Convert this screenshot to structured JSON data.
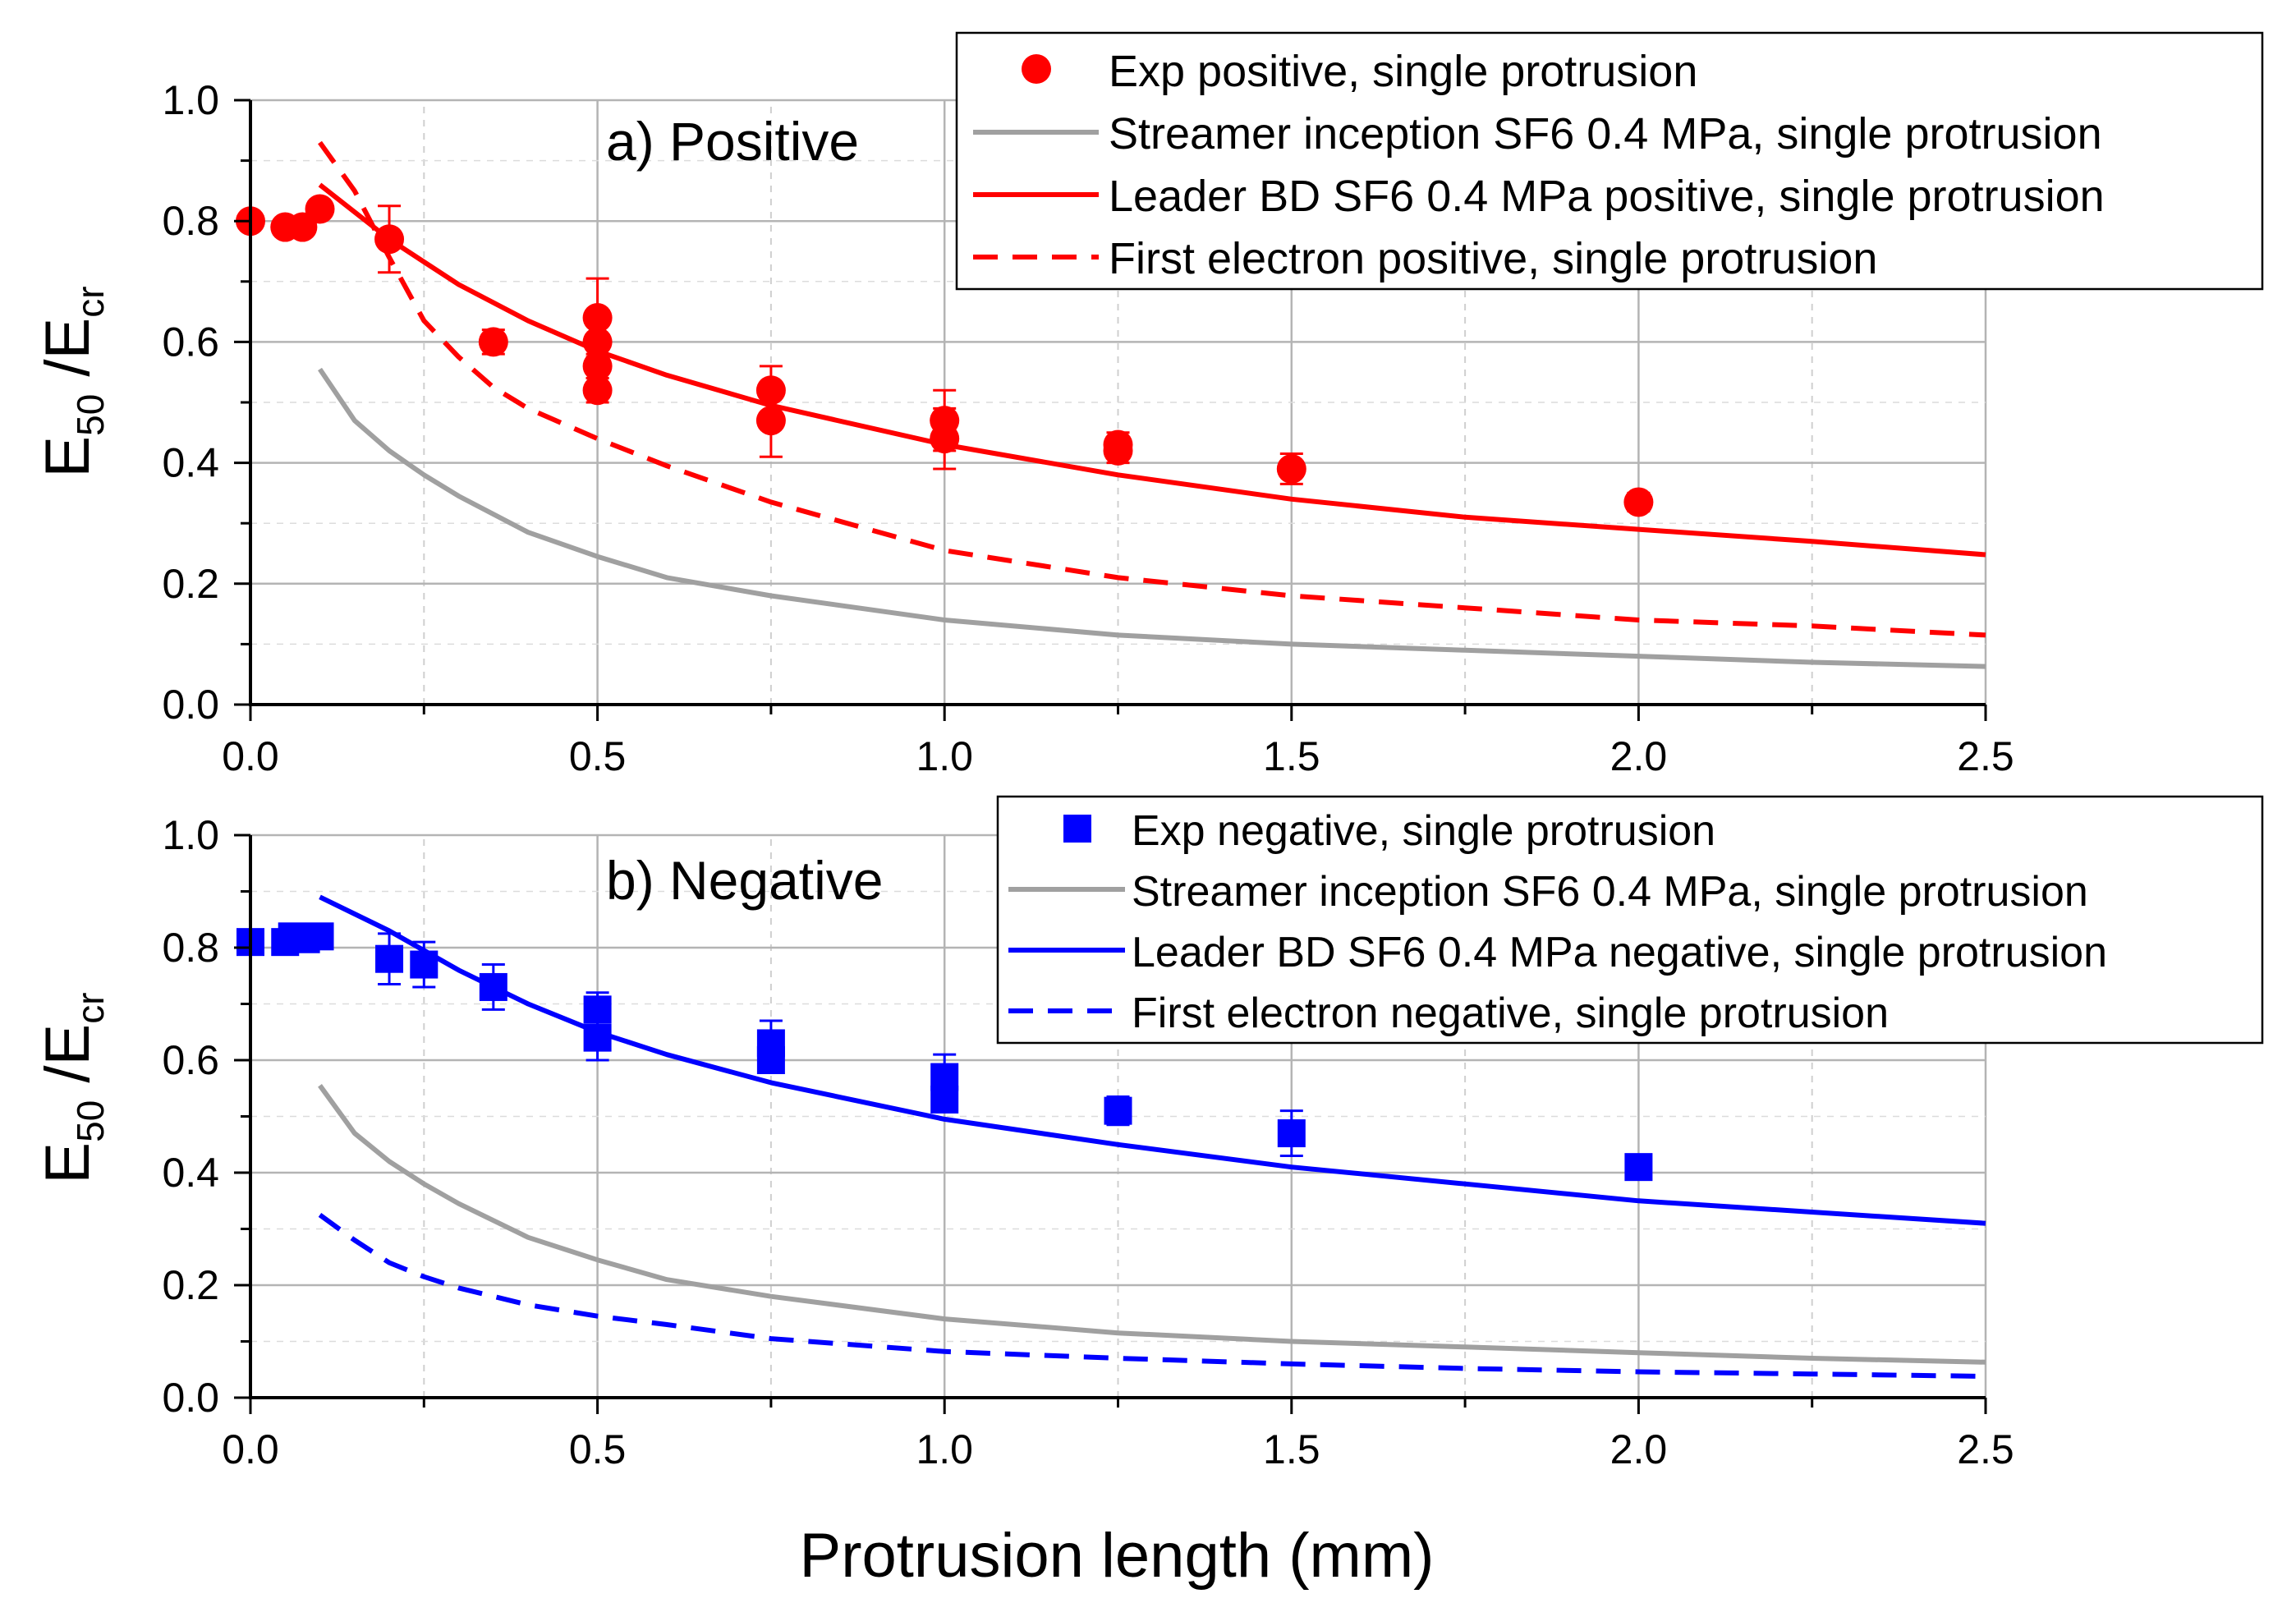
{
  "xlabel": "Protrusion length (mm)",
  "chart_data": [
    {
      "type": "scatter",
      "panel_label": "a) Positive",
      "ylabel_main": "E",
      "ylabel_sub1": "50",
      "ylabel_mid": " /E",
      "ylabel_sub2": "cr",
      "xlim": [
        0,
        2.5
      ],
      "ylim": [
        0,
        1.0
      ],
      "xticks": [
        "0.0",
        "0.5",
        "1.0",
        "1.5",
        "2.0",
        "2.5"
      ],
      "yticks": [
        "0.0",
        "0.2",
        "0.4",
        "0.6",
        "0.8",
        "1.0"
      ],
      "legend": [
        "Exp positive, single protrusion",
        "Streamer inception SF6 0.4 MPa, single protrusion",
        "Leader BD SF6 0.4 MPa positive, single protrusion",
        "First electron positive, single protrusion"
      ],
      "colors": {
        "exp": "#ff0000",
        "streamer": "#a0a0a0",
        "leader": "#ff0000",
        "first_electron": "#ff0000"
      },
      "exp_points": [
        {
          "x": 0.0,
          "y": 0.8,
          "err": 0
        },
        {
          "x": 0.05,
          "y": 0.79,
          "err": 0
        },
        {
          "x": 0.075,
          "y": 0.79,
          "err": 0
        },
        {
          "x": 0.1,
          "y": 0.82,
          "err": 0
        },
        {
          "x": 0.2,
          "y": 0.77,
          "err": 0.055
        },
        {
          "x": 0.35,
          "y": 0.6,
          "err": 0.02
        },
        {
          "x": 0.5,
          "y": 0.64,
          "err": 0.065
        },
        {
          "x": 0.5,
          "y": 0.6,
          "err": 0
        },
        {
          "x": 0.5,
          "y": 0.56,
          "err": 0.02
        },
        {
          "x": 0.5,
          "y": 0.52,
          "err": 0.02
        },
        {
          "x": 0.75,
          "y": 0.52,
          "err": 0.04
        },
        {
          "x": 0.75,
          "y": 0.47,
          "err": 0.06
        },
        {
          "x": 1.0,
          "y": 0.47,
          "err": 0.05
        },
        {
          "x": 1.0,
          "y": 0.44,
          "err": 0.05
        },
        {
          "x": 1.25,
          "y": 0.43,
          "err": 0.02
        },
        {
          "x": 1.25,
          "y": 0.42,
          "err": 0.02
        },
        {
          "x": 1.5,
          "y": 0.39,
          "err": 0.025
        },
        {
          "x": 2.0,
          "y": 0.335,
          "err": 0.015
        }
      ],
      "streamer": {
        "x": [
          0.1,
          0.15,
          0.2,
          0.25,
          0.3,
          0.4,
          0.5,
          0.6,
          0.75,
          1.0,
          1.25,
          1.5,
          1.75,
          2.0,
          2.25,
          2.5
        ],
        "y": [
          0.555,
          0.47,
          0.42,
          0.38,
          0.345,
          0.285,
          0.245,
          0.21,
          0.18,
          0.14,
          0.115,
          0.1,
          0.09,
          0.08,
          0.07,
          0.063
        ]
      },
      "leader": {
        "x": [
          0.1,
          0.2,
          0.3,
          0.4,
          0.5,
          0.6,
          0.75,
          1.0,
          1.25,
          1.5,
          1.75,
          2.0,
          2.25,
          2.5
        ],
        "y": [
          0.86,
          0.77,
          0.695,
          0.635,
          0.585,
          0.545,
          0.495,
          0.43,
          0.38,
          0.34,
          0.31,
          0.29,
          0.27,
          0.248
        ]
      },
      "first_electron": {
        "x": [
          0.1,
          0.15,
          0.2,
          0.25,
          0.3,
          0.35,
          0.4,
          0.5,
          0.6,
          0.75,
          1.0,
          1.25,
          1.5,
          1.75,
          2.0,
          2.25,
          2.5
        ],
        "y": [
          0.93,
          0.85,
          0.74,
          0.635,
          0.575,
          0.525,
          0.49,
          0.44,
          0.395,
          0.335,
          0.255,
          0.21,
          0.18,
          0.16,
          0.14,
          0.13,
          0.115
        ]
      }
    },
    {
      "type": "scatter",
      "panel_label": "b) Negative",
      "ylabel_main": "E",
      "ylabel_sub1": "50",
      "ylabel_mid": " /E",
      "ylabel_sub2": "cr",
      "xlim": [
        0,
        2.5
      ],
      "ylim": [
        0,
        1.0
      ],
      "xticks": [
        "0.0",
        "0.5",
        "1.0",
        "1.5",
        "2.0",
        "2.5"
      ],
      "yticks": [
        "0.0",
        "0.2",
        "0.4",
        "0.6",
        "0.8",
        "1.0"
      ],
      "legend": [
        "Exp negative, single protrusion",
        "Streamer inception SF6 0.4 MPa, single protrusion",
        "Leader BD SF6 0.4 MPa negative, single protrusion",
        "First electron negative, single protrusion"
      ],
      "colors": {
        "exp": "#0000ff",
        "streamer": "#a0a0a0",
        "leader": "#0000ff",
        "first_electron": "#0000ff"
      },
      "exp_points": [
        {
          "x": 0.0,
          "y": 0.81,
          "err": 0
        },
        {
          "x": 0.05,
          "y": 0.81,
          "err": 0.02
        },
        {
          "x": 0.06,
          "y": 0.82,
          "err": 0
        },
        {
          "x": 0.08,
          "y": 0.815,
          "err": 0
        },
        {
          "x": 0.1,
          "y": 0.82,
          "err": 0
        },
        {
          "x": 0.2,
          "y": 0.78,
          "err": 0.045
        },
        {
          "x": 0.25,
          "y": 0.77,
          "err": 0.04
        },
        {
          "x": 0.35,
          "y": 0.73,
          "err": 0.04
        },
        {
          "x": 0.5,
          "y": 0.69,
          "err": 0.03
        },
        {
          "x": 0.5,
          "y": 0.64,
          "err": 0.04
        },
        {
          "x": 0.75,
          "y": 0.63,
          "err": 0.04
        },
        {
          "x": 0.75,
          "y": 0.6,
          "err": 0.02
        },
        {
          "x": 1.0,
          "y": 0.57,
          "err": 0.04
        },
        {
          "x": 1.0,
          "y": 0.53,
          "err": 0.02
        },
        {
          "x": 1.25,
          "y": 0.51,
          "err": 0.025
        },
        {
          "x": 1.5,
          "y": 0.47,
          "err": 0.04
        },
        {
          "x": 2.0,
          "y": 0.41,
          "err": 0
        }
      ],
      "streamer": {
        "x": [
          0.1,
          0.15,
          0.2,
          0.25,
          0.3,
          0.4,
          0.5,
          0.6,
          0.75,
          1.0,
          1.25,
          1.5,
          1.75,
          2.0,
          2.25,
          2.5
        ],
        "y": [
          0.555,
          0.47,
          0.42,
          0.38,
          0.345,
          0.285,
          0.245,
          0.21,
          0.18,
          0.14,
          0.115,
          0.1,
          0.09,
          0.08,
          0.07,
          0.063
        ]
      },
      "leader": {
        "x": [
          0.1,
          0.2,
          0.3,
          0.4,
          0.5,
          0.6,
          0.75,
          1.0,
          1.25,
          1.5,
          1.75,
          2.0,
          2.25,
          2.5
        ],
        "y": [
          0.89,
          0.83,
          0.76,
          0.7,
          0.65,
          0.61,
          0.56,
          0.495,
          0.45,
          0.41,
          0.38,
          0.35,
          0.33,
          0.31
        ]
      },
      "first_electron": {
        "x": [
          0.1,
          0.15,
          0.2,
          0.25,
          0.3,
          0.4,
          0.5,
          0.6,
          0.75,
          1.0,
          1.25,
          1.5,
          1.75,
          2.0,
          2.25,
          2.5
        ],
        "y": [
          0.325,
          0.28,
          0.24,
          0.215,
          0.195,
          0.165,
          0.145,
          0.13,
          0.105,
          0.082,
          0.07,
          0.06,
          0.052,
          0.046,
          0.042,
          0.038
        ]
      }
    }
  ]
}
